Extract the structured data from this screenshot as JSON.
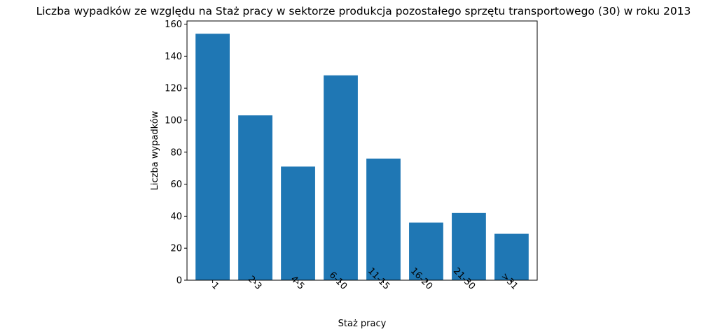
{
  "chart_data": {
    "type": "bar",
    "title": "Liczba wypadków ze względu na Staż pracy w sektorze produkcja pozostałego sprzętu transportowego  (30)  w roku 2013",
    "xlabel": "Staż pracy",
    "ylabel": "Liczba wypadków",
    "categories": [
      "1",
      "2-3",
      "4-5",
      "6-10",
      "11-15",
      "16-20",
      "21-30",
      ">31"
    ],
    "values": [
      154,
      103,
      71,
      128,
      76,
      36,
      42,
      29
    ],
    "ylim": [
      0,
      162
    ],
    "yticks": [
      0,
      20,
      40,
      60,
      80,
      100,
      120,
      140,
      160
    ],
    "bar_color": "#1f77b4",
    "grid": false,
    "legend": "none",
    "xtick_rotation_deg": 45
  }
}
